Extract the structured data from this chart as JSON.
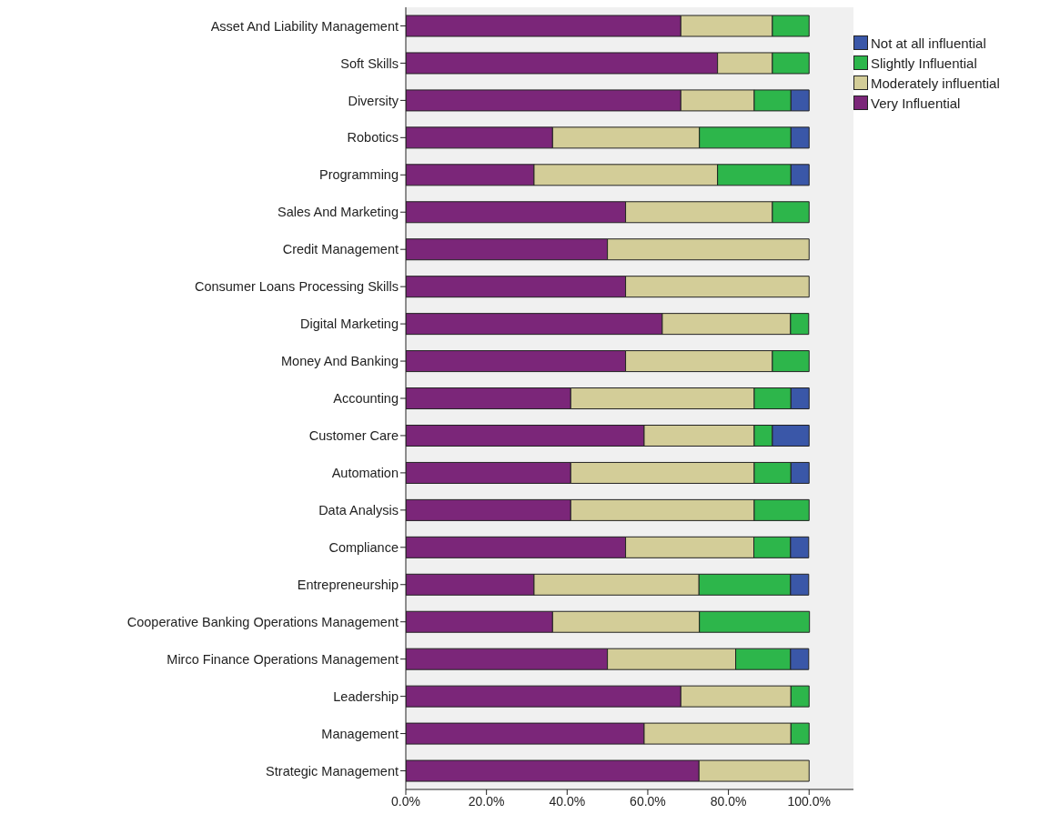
{
  "chart_data": {
    "type": "bar",
    "orientation": "horizontal",
    "stacked": true,
    "categories": [
      "Asset And Liability Management",
      "Soft Skills",
      "Diversity",
      "Robotics",
      "Programming",
      "Sales And Marketing",
      "Credit Management",
      "Consumer Loans Processing Skills",
      "Digital Marketing",
      "Money And Banking",
      "Accounting",
      "Customer Care",
      "Automation",
      "Data Analysis",
      "Compliance",
      "Entrepreneurship",
      "Cooperative Banking Operations Management",
      "Mirco Finance Operations Management",
      "Leadership",
      "Management",
      "Strategic Management"
    ],
    "series": [
      {
        "name": "Very Influential",
        "color": "#7b2679",
        "values": [
          68.2,
          77.3,
          68.2,
          36.4,
          31.8,
          54.5,
          50,
          54.5,
          63.6,
          54.5,
          40.9,
          59.1,
          40.9,
          40.9,
          54.5,
          31.8,
          36.4,
          50,
          68.2,
          59.1,
          72.7
        ]
      },
      {
        "name": "Moderately influential",
        "color": "#d3cd98",
        "values": [
          22.7,
          13.6,
          18.2,
          36.4,
          45.5,
          36.4,
          50,
          45.5,
          31.8,
          36.4,
          45.5,
          27.3,
          45.5,
          45.5,
          31.8,
          40.9,
          36.4,
          31.8,
          27.3,
          36.4,
          27.3
        ]
      },
      {
        "name": "Slightly Influential",
        "color": "#2db64b",
        "values": [
          9.1,
          9.1,
          9.1,
          22.7,
          18.2,
          9.1,
          0,
          0,
          4.5,
          9.1,
          9.1,
          4.5,
          9.1,
          13.6,
          9.1,
          22.7,
          27.3,
          13.6,
          4.5,
          4.5,
          0
        ]
      },
      {
        "name": "Not at all influential",
        "color": "#3a57a8",
        "values": [
          0,
          0,
          4.5,
          4.5,
          4.5,
          0,
          0,
          0,
          0,
          0,
          4.5,
          9.1,
          4.5,
          0,
          4.5,
          4.5,
          0,
          4.5,
          0,
          0,
          0
        ]
      }
    ],
    "xlim": [
      0,
      111
    ],
    "xticks": [
      {
        "value": 0,
        "label": "0.0%"
      },
      {
        "value": 20,
        "label": "20.0%"
      },
      {
        "value": 40,
        "label": "40.0%"
      },
      {
        "value": 60,
        "label": "60.0%"
      },
      {
        "value": 80,
        "label": "80.0%"
      },
      {
        "value": 100,
        "label": "100.0%"
      }
    ],
    "legend": "top right"
  }
}
